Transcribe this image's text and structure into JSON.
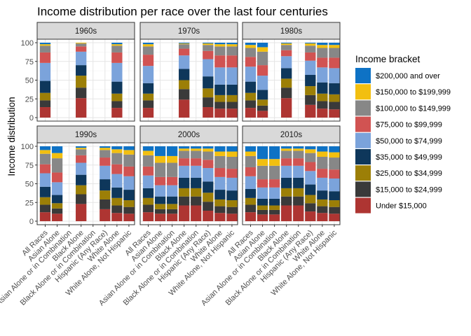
{
  "chart_data": {
    "type": "bar",
    "stacked": true,
    "title": "Income distribution per race over the last four centuries",
    "xlabel": "",
    "ylabel": "Income distribution",
    "ylim": [
      0,
      100
    ],
    "yticks": [
      0,
      25,
      50,
      75,
      100
    ],
    "grid": true,
    "legend": {
      "title": "Income bracket",
      "position": "right",
      "entries": [
        {
          "label": "$200,000 and over",
          "color": "#0E72C5"
        },
        {
          "label": "$150,000 to $199,999",
          "color": "#F2BF10"
        },
        {
          "label": "$100,000 to $149,999",
          "color": "#878787"
        },
        {
          "label": "$75,000 to $99,999",
          "color": "#D15352"
        },
        {
          "label": "$50,000 to $74,999",
          "color": "#7BA3DB"
        },
        {
          "label": "$35,000 to $49,999",
          "color": "#0E375B"
        },
        {
          "label": "$25,000 to $34,999",
          "color": "#9C7F07"
        },
        {
          "label": "$15,000 to $24,999",
          "color": "#3A3A3A"
        },
        {
          "label": "Under $15,000",
          "color": "#AE3532"
        }
      ]
    },
    "categories": [
      "All Races",
      "Asian Alone",
      "Asian Alone or in Combination",
      "Black Alone",
      "Black Alone or in Combination",
      "Hispanic (Any Race)",
      "White Alone",
      "White Alone, Not Hispanic"
    ],
    "stack_order": [
      "Under $15,000",
      "$15,000 to $24,999",
      "$25,000 to $34,999",
      "$35,000 to $49,999",
      "$50,000 to $74,999",
      "$75,000 to $99,999",
      "$100,000 to $149,999",
      "$150,000 to $199,999",
      "$200,000 and over"
    ],
    "panels": [
      {
        "label": "1960s",
        "bars": {
          "All Races": [
            14,
            9,
            10,
            16,
            24,
            14,
            9,
            2,
            2
          ],
          "Black Alone": [
            26,
            14,
            16,
            14,
            18,
            7,
            4,
            1,
            0
          ],
          "White Alone": [
            13,
            9,
            10,
            16,
            25,
            14,
            9,
            2,
            2
          ]
        }
      },
      {
        "label": "1970s",
        "bars": {
          "All Races": [
            13,
            10,
            9,
            14,
            23,
            15,
            11,
            3,
            2
          ],
          "Black Alone": [
            24,
            14,
            12,
            15,
            18,
            9,
            6,
            1,
            1
          ],
          "Hispanic (Any Race)": [
            14,
            13,
            12,
            16,
            23,
            11,
            8,
            2,
            1
          ],
          "White Alone": [
            12,
            9,
            9,
            14,
            23,
            16,
            12,
            3,
            2
          ],
          "White Alone, Not Hispanic": [
            12,
            9,
            9,
            14,
            23,
            16,
            12,
            3,
            2
          ]
        }
      },
      {
        "label": "1980s",
        "bars": {
          "All Races": [
            13,
            10,
            10,
            15,
            20,
            13,
            12,
            4,
            3
          ],
          "Asian Alone": [
            9,
            7,
            8,
            13,
            19,
            14,
            18,
            6,
            6
          ],
          "Black Alone": [
            26,
            14,
            12,
            14,
            16,
            8,
            7,
            2,
            1
          ],
          "Hispanic (Any Race)": [
            17,
            13,
            12,
            15,
            19,
            11,
            9,
            3,
            1
          ],
          "White Alone": [
            12,
            10,
            10,
            15,
            20,
            13,
            13,
            4,
            3
          ],
          "White Alone, Not Hispanic": [
            11,
            10,
            10,
            15,
            20,
            14,
            13,
            4,
            3
          ]
        }
      },
      {
        "label": "1990s",
        "bars": {
          "All Races": [
            12,
            10,
            10,
            14,
            18,
            12,
            14,
            5,
            5
          ],
          "Asian Alone": [
            10,
            7,
            7,
            11,
            17,
            13,
            19,
            7,
            9
          ],
          "Black Alone": [
            23,
            13,
            12,
            14,
            16,
            10,
            8,
            2,
            2
          ],
          "Hispanic (Any Race)": [
            16,
            13,
            12,
            15,
            18,
            11,
            10,
            3,
            2
          ],
          "White Alone": [
            11,
            10,
            10,
            14,
            18,
            13,
            15,
            5,
            4
          ],
          "White Alone, Not Hispanic": [
            10,
            9,
            9,
            14,
            18,
            13,
            16,
            6,
            5
          ]
        }
      },
      {
        "label": "2000s",
        "bars": {
          "All Races": [
            12,
            10,
            9,
            13,
            17,
            12,
            15,
            6,
            6
          ],
          "Asian Alone": [
            10,
            6,
            7,
            10,
            15,
            11,
            19,
            9,
            13
          ],
          "Asian Alone or in Combination": [
            10,
            6,
            7,
            10,
            15,
            11,
            19,
            9,
            13
          ],
          "Black Alone": [
            21,
            12,
            11,
            14,
            16,
            10,
            10,
            3,
            3
          ],
          "Black Alone or in Combination": [
            21,
            12,
            11,
            14,
            16,
            10,
            10,
            3,
            3
          ],
          "Hispanic (Any Race)": [
            14,
            12,
            12,
            15,
            18,
            11,
            11,
            4,
            3
          ],
          "White Alone": [
            11,
            9,
            9,
            13,
            17,
            12,
            16,
            6,
            7
          ],
          "White Alone, Not Hispanic": [
            10,
            9,
            9,
            13,
            17,
            12,
            16,
            7,
            7
          ]
        }
      },
      {
        "label": "2010s",
        "bars": {
          "All Races": [
            12,
            10,
            9,
            12,
            17,
            12,
            15,
            6,
            7
          ],
          "Asian Alone": [
            9,
            6,
            6,
            9,
            15,
            11,
            18,
            9,
            17
          ],
          "Asian Alone or in Combination": [
            9,
            6,
            6,
            9,
            15,
            11,
            18,
            9,
            17
          ],
          "Black Alone": [
            21,
            12,
            11,
            14,
            16,
            10,
            10,
            3,
            3
          ],
          "Black Alone or in Combination": [
            21,
            12,
            11,
            14,
            16,
            10,
            10,
            3,
            3
          ],
          "Hispanic (Any Race)": [
            13,
            11,
            11,
            14,
            18,
            12,
            12,
            5,
            4
          ],
          "White Alone": [
            11,
            9,
            9,
            12,
            17,
            12,
            16,
            7,
            7
          ],
          "White Alone, Not Hispanic": [
            10,
            9,
            9,
            12,
            17,
            12,
            16,
            7,
            8
          ]
        }
      }
    ]
  }
}
